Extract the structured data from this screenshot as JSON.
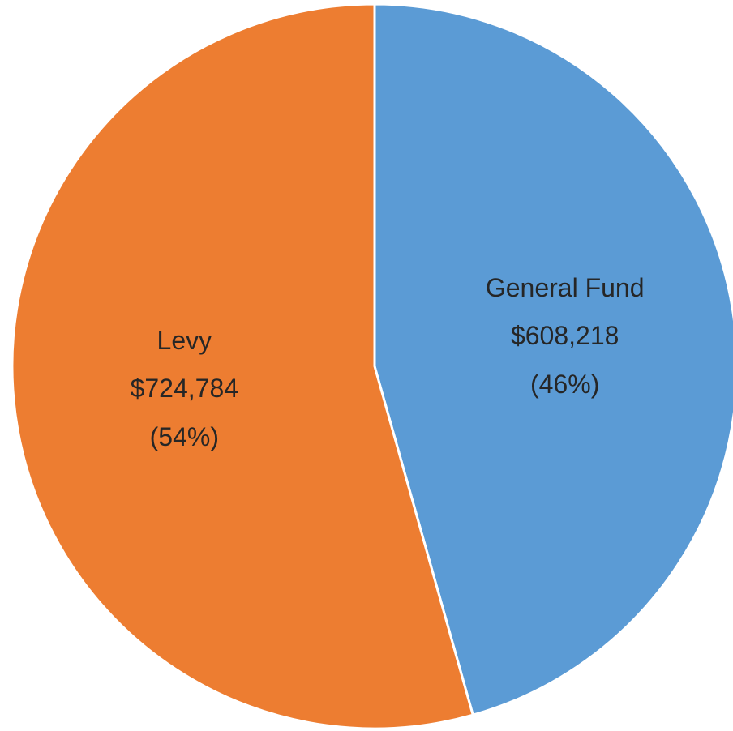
{
  "chart_data": {
    "type": "pie",
    "categories": [
      "General Fund",
      "Levy"
    ],
    "values": [
      608218,
      724784
    ],
    "value_labels": [
      "$608,218",
      "$724,784"
    ],
    "percents": [
      46,
      54
    ],
    "percent_labels": [
      "(46%)",
      "(54%)"
    ],
    "colors": [
      "#5b9bd5",
      "#ed7d31"
    ]
  }
}
